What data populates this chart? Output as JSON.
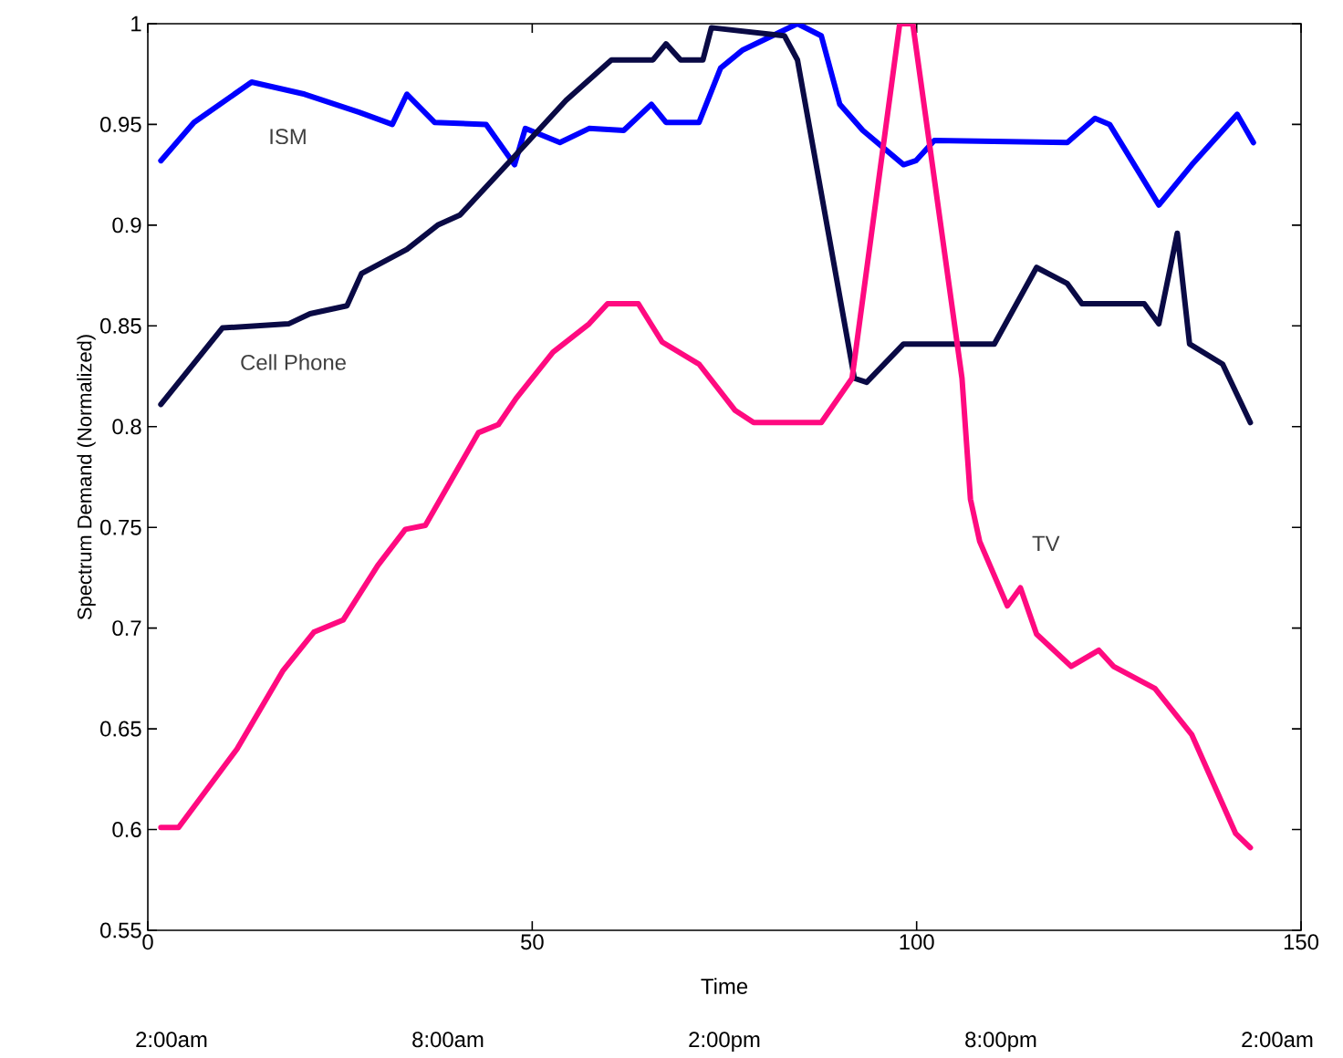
{
  "chart_data": {
    "type": "line",
    "xlabel": "Time",
    "ylabel": "Spectrum Demand  (Normalized)",
    "xlim": [
      0,
      150
    ],
    "xticks": [
      0,
      50,
      100,
      150
    ],
    "ylim": [
      0.55,
      1
    ],
    "yticks": [
      0.55,
      0.6,
      0.65,
      0.7,
      0.75,
      0.8,
      0.85,
      0.9,
      0.95,
      1
    ],
    "grid": false,
    "legend": false,
    "marker": "none",
    "line_style": "solid",
    "annotations": [
      "2:00am",
      "8:00am",
      "2:00pm",
      "8:00pm",
      "2:00am"
    ],
    "series": [
      {
        "name": "ISM",
        "color": "#0000ff",
        "x": [
          1.7,
          6,
          13.5,
          20.4,
          27.5,
          31.8,
          33.7,
          37.3,
          44,
          47.7,
          49.1,
          53.6,
          57.4,
          61.9,
          65.5,
          67.4,
          71.7,
          74.5,
          77.4,
          84.5,
          87.6,
          90,
          93,
          98.3,
          99.9,
          102.3,
          119.6,
          123.2,
          125.1,
          131.5,
          135.8,
          141.7,
          143.8
        ],
        "values": [
          0.932,
          0.951,
          0.971,
          0.965,
          0.956,
          0.95,
          0.965,
          0.951,
          0.95,
          0.93,
          0.948,
          0.941,
          0.948,
          0.947,
          0.96,
          0.951,
          0.951,
          0.978,
          0.987,
          1.0,
          0.994,
          0.96,
          0.947,
          0.93,
          0.932,
          0.942,
          0.941,
          0.953,
          0.95,
          0.91,
          0.93,
          0.955,
          0.941
        ]
      },
      {
        "name": "Cell Phone",
        "color": "#0a0a45",
        "x": [
          1.7,
          9.7,
          18.3,
          21.1,
          25.9,
          27.8,
          33.7,
          37.7,
          40.6,
          47.9,
          54.4,
          60.3,
          65.7,
          67.4,
          69.3,
          72.2,
          73.3,
          82.8,
          84.5,
          91.9,
          93.5,
          98.3,
          110.1,
          115.6,
          119.6,
          121.5,
          129.6,
          131.5,
          133.9,
          135.5,
          139.8,
          143.4
        ],
        "values": [
          0.811,
          0.849,
          0.851,
          0.856,
          0.86,
          0.876,
          0.888,
          0.9,
          0.905,
          0.935,
          0.962,
          0.982,
          0.982,
          0.99,
          0.982,
          0.982,
          0.998,
          0.994,
          0.982,
          0.824,
          0.822,
          0.841,
          0.841,
          0.879,
          0.871,
          0.861,
          0.861,
          0.851,
          0.896,
          0.841,
          0.831,
          0.802
        ]
      },
      {
        "name": "TV",
        "color": "#ff0a80",
        "x": [
          1.7,
          4,
          11.6,
          17.6,
          21.6,
          25.4,
          29.9,
          33.5,
          36.1,
          43,
          45.6,
          47.9,
          52.7,
          57.4,
          59.8,
          63.8,
          66.9,
          71.7,
          76.4,
          78.8,
          87.6,
          91.6,
          97.8,
          99.5,
          105.9,
          107,
          108.2,
          111.8,
          113.5,
          115.6,
          120.1,
          123.7,
          125.6,
          131,
          135.8,
          141.5,
          143.4
        ],
        "values": [
          0.601,
          0.601,
          0.64,
          0.679,
          0.698,
          0.704,
          0.731,
          0.749,
          0.751,
          0.797,
          0.801,
          0.814,
          0.837,
          0.851,
          0.861,
          0.861,
          0.842,
          0.831,
          0.808,
          0.802,
          0.802,
          0.824,
          1.0,
          1.0,
          0.824,
          0.764,
          0.743,
          0.711,
          0.72,
          0.697,
          0.681,
          0.689,
          0.681,
          0.67,
          0.647,
          0.598,
          0.591
        ]
      }
    ]
  }
}
